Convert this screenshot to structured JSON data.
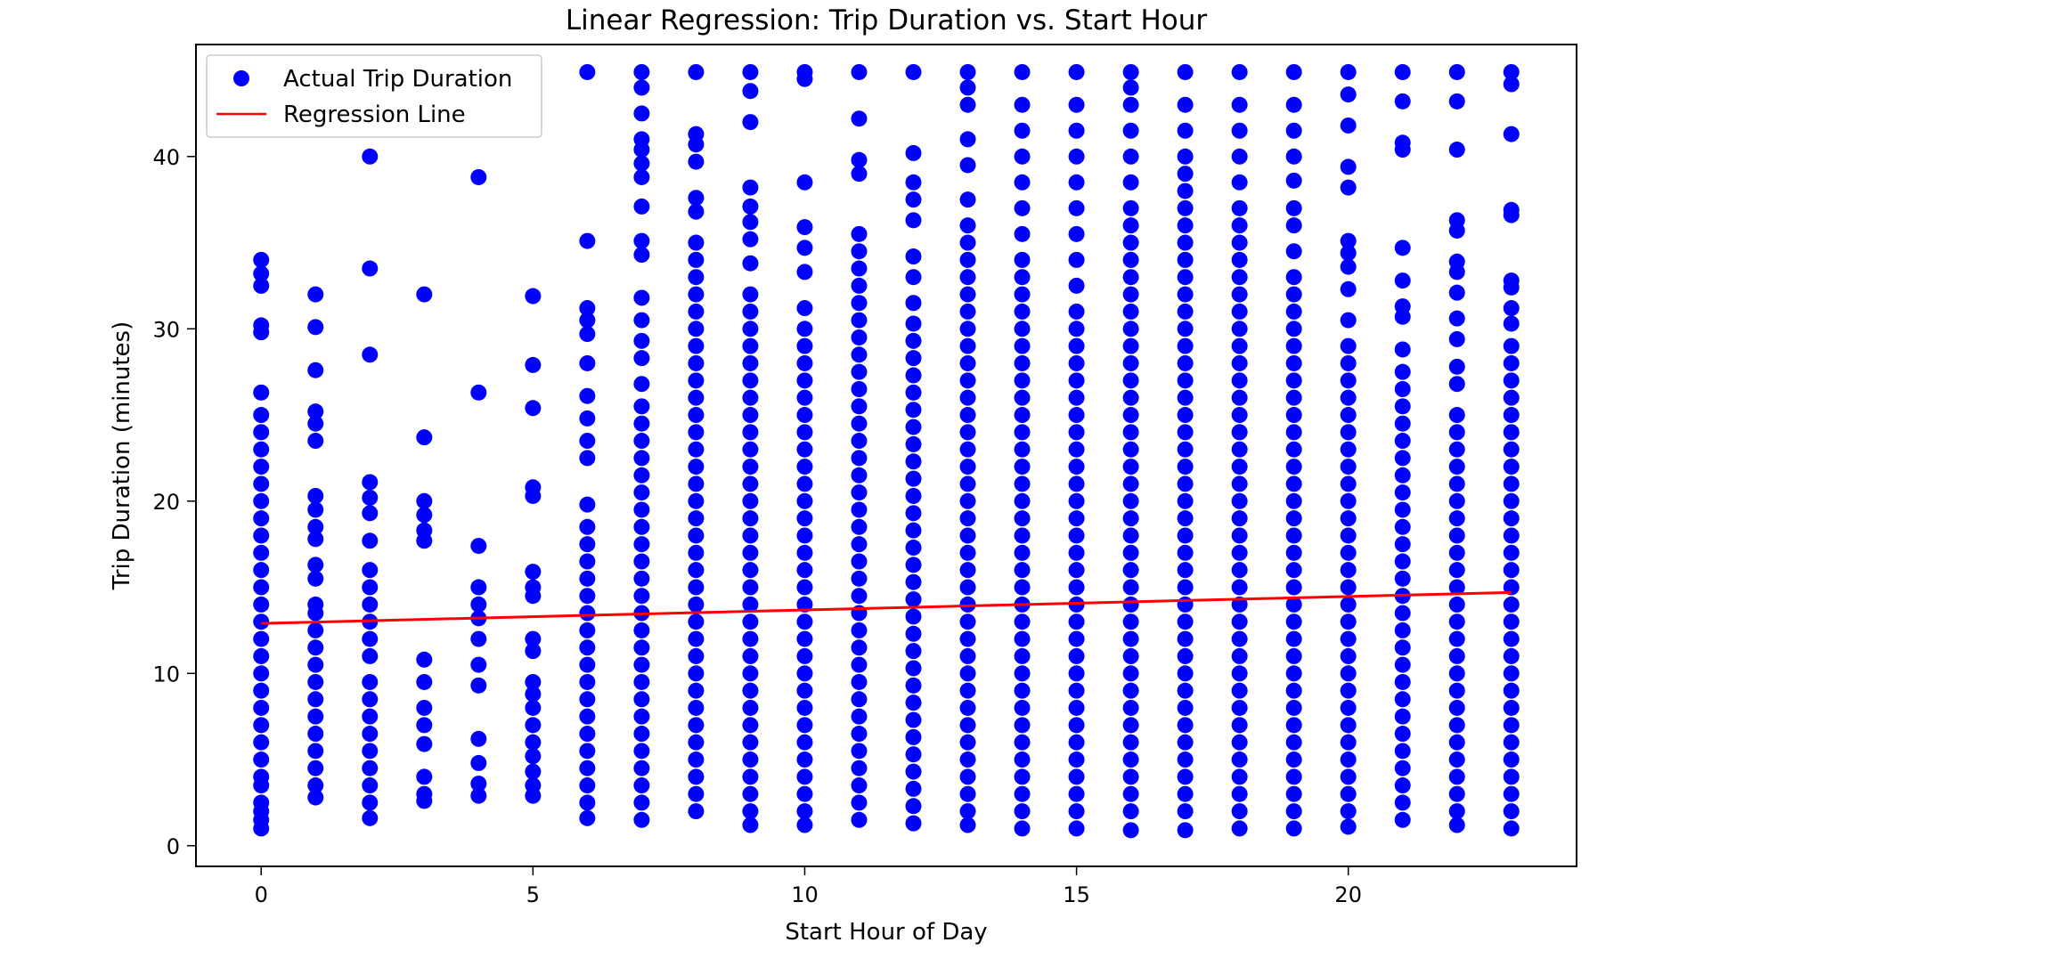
{
  "chart_data": {
    "type": "scatter",
    "title": "Linear Regression: Trip Duration vs. Start Hour",
    "xlabel": "Start Hour of Day",
    "ylabel": "Trip Duration (minutes)",
    "xlim": [
      -1.2,
      24.2
    ],
    "ylim": [
      -1.2,
      46.5
    ],
    "xticks": [
      0,
      5,
      10,
      15,
      20
    ],
    "yticks": [
      0,
      10,
      20,
      30,
      40
    ],
    "grid": false,
    "legend_position": "top-left",
    "series": [
      {
        "name": "Actual Trip Duration",
        "kind": "scatter",
        "color": "#0000ff",
        "points_by_hour": [
          {
            "x": 0,
            "y": [
              1.0,
              1.5,
              2.0,
              2.5,
              3.5,
              4.0,
              5.0,
              6.0,
              7.0,
              8.0,
              9.0,
              10.0,
              11.0,
              12.0,
              13.0,
              14.0,
              15.0,
              16.0,
              17.0,
              18.0,
              19.0,
              20.0,
              21.0,
              22.0,
              23.0,
              24.0,
              25.0,
              26.3,
              29.8,
              30.2,
              32.5,
              33.2,
              34.0
            ]
          },
          {
            "x": 1,
            "y": [
              2.8,
              3.5,
              4.5,
              5.5,
              6.5,
              7.5,
              8.5,
              9.5,
              10.5,
              11.5,
              12.5,
              13.5,
              14.0,
              15.5,
              16.3,
              17.8,
              18.5,
              19.5,
              20.3,
              23.5,
              24.5,
              25.2,
              27.6,
              30.1,
              32.0
            ]
          },
          {
            "x": 2,
            "y": [
              1.6,
              2.5,
              3.5,
              4.5,
              5.5,
              6.5,
              7.5,
              8.5,
              9.5,
              11.0,
              12.0,
              13.0,
              14.0,
              15.0,
              16.0,
              17.7,
              19.3,
              20.2,
              21.1,
              28.5,
              33.5,
              40.0
            ]
          },
          {
            "x": 3,
            "y": [
              2.6,
              3.0,
              4.0,
              5.9,
              7.0,
              8.0,
              9.5,
              10.8,
              17.7,
              18.3,
              19.2,
              20.0,
              23.7,
              32.0
            ]
          },
          {
            "x": 4,
            "y": [
              2.9,
              3.6,
              4.8,
              6.2,
              9.3,
              10.5,
              12.0,
              13.2,
              14.0,
              15.0,
              17.4,
              26.3,
              38.8
            ]
          },
          {
            "x": 5,
            "y": [
              2.9,
              3.5,
              4.3,
              5.2,
              6.0,
              7.0,
              8.0,
              8.8,
              9.5,
              11.3,
              12.0,
              14.5,
              15.0,
              15.9,
              20.3,
              20.8,
              25.4,
              27.9,
              31.9
            ]
          },
          {
            "x": 6,
            "y": [
              1.6,
              2.5,
              3.5,
              4.5,
              5.5,
              6.5,
              7.5,
              8.5,
              9.5,
              10.5,
              11.5,
              12.5,
              13.5,
              14.5,
              15.5,
              16.5,
              17.5,
              18.5,
              19.8,
              22.5,
              23.5,
              24.8,
              26.1,
              28.0,
              29.7,
              30.5,
              31.2,
              35.1,
              44.9
            ]
          },
          {
            "x": 7,
            "y": [
              1.5,
              2.5,
              3.5,
              4.5,
              5.5,
              6.5,
              7.5,
              8.5,
              9.5,
              10.5,
              11.5,
              12.5,
              13.5,
              14.5,
              15.5,
              16.5,
              17.5,
              18.5,
              19.5,
              20.5,
              21.5,
              22.5,
              23.5,
              24.5,
              25.5,
              26.8,
              28.3,
              29.3,
              30.5,
              31.8,
              34.3,
              35.1,
              37.1,
              38.8,
              39.6,
              40.4,
              41.0,
              42.5,
              44.0,
              44.9
            ]
          },
          {
            "x": 8,
            "y": [
              2.0,
              3.0,
              4.0,
              5.0,
              6.0,
              7.0,
              8.0,
              9.0,
              10.0,
              11.0,
              12.0,
              13.0,
              14.0,
              15.0,
              16.0,
              17.0,
              18.0,
              19.0,
              20.0,
              21.0,
              22.0,
              23.0,
              24.0,
              25.0,
              26.0,
              27.0,
              28.0,
              29.0,
              30.0,
              31.0,
              32.0,
              33.0,
              34.0,
              35.0,
              36.8,
              37.6,
              39.7,
              40.7,
              41.3,
              44.9
            ]
          },
          {
            "x": 9,
            "y": [
              1.2,
              2.0,
              3.0,
              4.0,
              5.0,
              6.0,
              7.0,
              8.0,
              9.0,
              10.0,
              11.0,
              12.0,
              13.0,
              14.0,
              15.0,
              16.0,
              17.0,
              18.0,
              19.0,
              20.0,
              21.0,
              22.0,
              23.0,
              24.0,
              25.0,
              26.0,
              27.0,
              28.0,
              29.0,
              30.0,
              31.0,
              32.0,
              33.8,
              35.2,
              36.2,
              37.1,
              38.2,
              42.0,
              43.8,
              44.9
            ]
          },
          {
            "x": 10,
            "y": [
              1.2,
              2.0,
              3.0,
              4.0,
              5.0,
              6.0,
              7.0,
              8.0,
              9.0,
              10.0,
              11.0,
              12.0,
              13.0,
              14.0,
              15.0,
              16.0,
              17.0,
              18.0,
              19.0,
              20.0,
              21.0,
              22.0,
              23.0,
              24.0,
              25.0,
              26.0,
              27.0,
              28.0,
              29.0,
              30.0,
              31.2,
              33.3,
              34.7,
              35.9,
              38.5,
              44.5,
              44.9
            ]
          },
          {
            "x": 11,
            "y": [
              1.5,
              2.5,
              3.5,
              4.5,
              5.5,
              6.5,
              7.5,
              8.5,
              9.5,
              10.5,
              11.5,
              12.5,
              13.5,
              14.5,
              15.5,
              16.5,
              17.5,
              18.5,
              19.5,
              20.5,
              21.5,
              22.5,
              23.5,
              24.5,
              25.5,
              26.5,
              27.5,
              28.5,
              29.5,
              30.5,
              31.5,
              32.5,
              33.5,
              34.5,
              35.5,
              39.0,
              39.8,
              42.2,
              44.9
            ]
          },
          {
            "x": 12,
            "y": [
              1.3,
              2.3,
              3.3,
              4.3,
              5.3,
              6.3,
              7.3,
              8.3,
              9.3,
              10.3,
              11.3,
              12.3,
              13.3,
              14.3,
              15.3,
              16.3,
              17.3,
              18.3,
              19.3,
              20.3,
              21.3,
              22.3,
              23.3,
              24.3,
              25.3,
              26.3,
              27.3,
              28.3,
              29.3,
              30.3,
              31.5,
              33.0,
              34.2,
              36.3,
              37.5,
              38.5,
              40.2,
              44.9
            ]
          },
          {
            "x": 13,
            "y": [
              1.2,
              2.0,
              3.0,
              4.0,
              5.0,
              6.0,
              7.0,
              8.0,
              9.0,
              10.0,
              11.0,
              12.0,
              13.0,
              14.0,
              15.0,
              16.0,
              17.0,
              18.0,
              19.0,
              20.0,
              21.0,
              22.0,
              23.0,
              24.0,
              25.0,
              26.0,
              27.0,
              28.0,
              29.0,
              30.0,
              31.0,
              32.0,
              33.0,
              34.0,
              35.0,
              36.0,
              37.5,
              39.5,
              41.0,
              43.0,
              44.0,
              44.9
            ]
          },
          {
            "x": 14,
            "y": [
              1.0,
              2.0,
              3.0,
              4.0,
              5.0,
              6.0,
              7.0,
              8.0,
              9.0,
              10.0,
              11.0,
              12.0,
              13.0,
              14.0,
              15.0,
              16.0,
              17.0,
              18.0,
              19.0,
              20.0,
              21.0,
              22.0,
              23.0,
              24.0,
              25.0,
              26.0,
              27.0,
              28.0,
              29.0,
              30.0,
              31.0,
              32.0,
              33.0,
              34.0,
              35.5,
              37.0,
              38.5,
              40.0,
              41.5,
              43.0,
              44.9
            ]
          },
          {
            "x": 15,
            "y": [
              1.0,
              2.0,
              3.0,
              4.0,
              5.0,
              6.0,
              7.0,
              8.0,
              9.0,
              10.0,
              11.0,
              12.0,
              13.0,
              14.0,
              15.0,
              16.0,
              17.0,
              18.0,
              19.0,
              20.0,
              21.0,
              22.0,
              23.0,
              24.0,
              25.0,
              26.0,
              27.0,
              28.0,
              29.0,
              30.0,
              31.0,
              32.5,
              34.0,
              35.5,
              37.0,
              38.5,
              40.0,
              41.5,
              43.0,
              44.9
            ]
          },
          {
            "x": 16,
            "y": [
              0.9,
              2.0,
              3.0,
              4.0,
              5.0,
              6.0,
              7.0,
              8.0,
              9.0,
              10.0,
              11.0,
              12.0,
              13.0,
              14.0,
              15.0,
              16.0,
              17.0,
              18.0,
              19.0,
              20.0,
              21.0,
              22.0,
              23.0,
              24.0,
              25.0,
              26.0,
              27.0,
              28.0,
              29.0,
              30.0,
              31.0,
              32.0,
              33.0,
              34.0,
              35.0,
              36.0,
              37.0,
              38.5,
              40.0,
              41.5,
              43.0,
              44.0,
              44.9
            ]
          },
          {
            "x": 17,
            "y": [
              0.9,
              2.0,
              3.0,
              4.0,
              5.0,
              6.0,
              7.0,
              8.0,
              9.0,
              10.0,
              11.0,
              12.0,
              13.0,
              14.0,
              15.0,
              16.0,
              17.0,
              18.0,
              19.0,
              20.0,
              21.0,
              22.0,
              23.0,
              24.0,
              25.0,
              26.0,
              27.0,
              28.0,
              29.0,
              30.0,
              31.0,
              32.0,
              33.0,
              34.0,
              35.0,
              36.0,
              37.0,
              38.0,
              39.0,
              40.0,
              41.5,
              43.0,
              44.9
            ]
          },
          {
            "x": 18,
            "y": [
              1.0,
              2.0,
              3.0,
              4.0,
              5.0,
              6.0,
              7.0,
              8.0,
              9.0,
              10.0,
              11.0,
              12.0,
              13.0,
              14.0,
              15.0,
              16.0,
              17.0,
              18.0,
              19.0,
              20.0,
              21.0,
              22.0,
              23.0,
              24.0,
              25.0,
              26.0,
              27.0,
              28.0,
              29.0,
              30.0,
              31.0,
              32.0,
              33.0,
              34.0,
              35.0,
              36.0,
              37.0,
              38.5,
              40.0,
              41.5,
              43.0,
              44.9
            ]
          },
          {
            "x": 19,
            "y": [
              1.0,
              2.0,
              3.0,
              4.0,
              5.0,
              6.0,
              7.0,
              8.0,
              9.0,
              10.0,
              11.0,
              12.0,
              13.0,
              14.0,
              15.0,
              16.0,
              17.0,
              18.0,
              19.0,
              20.0,
              21.0,
              22.0,
              23.0,
              24.0,
              25.0,
              26.0,
              27.0,
              28.0,
              29.0,
              30.0,
              31.0,
              32.0,
              33.0,
              34.5,
              36.0,
              37.0,
              38.6,
              40.0,
              41.5,
              43.0,
              44.9
            ]
          },
          {
            "x": 20,
            "y": [
              1.1,
              2.0,
              3.0,
              4.0,
              5.0,
              6.0,
              7.0,
              8.0,
              9.0,
              10.0,
              11.0,
              12.0,
              13.0,
              14.0,
              15.0,
              16.0,
              17.0,
              18.0,
              19.0,
              20.0,
              21.0,
              22.0,
              23.0,
              24.0,
              25.0,
              26.0,
              27.0,
              28.0,
              29.0,
              30.5,
              32.3,
              33.6,
              34.4,
              35.1,
              38.2,
              39.4,
              41.8,
              43.6,
              44.9
            ]
          },
          {
            "x": 21,
            "y": [
              1.5,
              2.5,
              3.5,
              4.5,
              5.5,
              6.5,
              7.5,
              8.5,
              9.5,
              10.5,
              11.5,
              12.5,
              13.5,
              14.5,
              15.5,
              16.5,
              17.5,
              18.5,
              19.5,
              20.5,
              21.5,
              22.5,
              23.5,
              24.5,
              25.5,
              26.5,
              27.5,
              28.8,
              30.7,
              31.3,
              32.8,
              34.7,
              40.4,
              40.8,
              43.2,
              44.9
            ]
          },
          {
            "x": 22,
            "y": [
              1.2,
              2.0,
              3.0,
              4.0,
              5.0,
              6.0,
              7.0,
              8.0,
              9.0,
              10.0,
              11.0,
              12.0,
              13.0,
              14.0,
              15.0,
              16.0,
              17.0,
              18.0,
              19.0,
              20.0,
              21.0,
              22.0,
              23.0,
              24.0,
              25.0,
              26.8,
              27.8,
              29.4,
              30.6,
              32.1,
              33.3,
              33.9,
              35.7,
              36.3,
              40.4,
              43.2,
              44.9
            ]
          },
          {
            "x": 23,
            "y": [
              1.0,
              2.0,
              3.0,
              4.0,
              5.0,
              6.0,
              7.0,
              8.0,
              9.0,
              10.0,
              11.0,
              12.0,
              13.0,
              14.0,
              15.0,
              16.0,
              17.0,
              18.0,
              19.0,
              20.0,
              21.0,
              22.0,
              23.0,
              24.0,
              25.0,
              26.0,
              27.0,
              28.0,
              29.0,
              30.3,
              31.2,
              32.4,
              32.8,
              36.6,
              36.9,
              41.3,
              44.2,
              44.9
            ]
          }
        ]
      },
      {
        "name": "Regression Line",
        "kind": "line",
        "color": "#ff0000",
        "x": [
          0,
          23
        ],
        "y": [
          12.9,
          14.7
        ]
      }
    ]
  }
}
